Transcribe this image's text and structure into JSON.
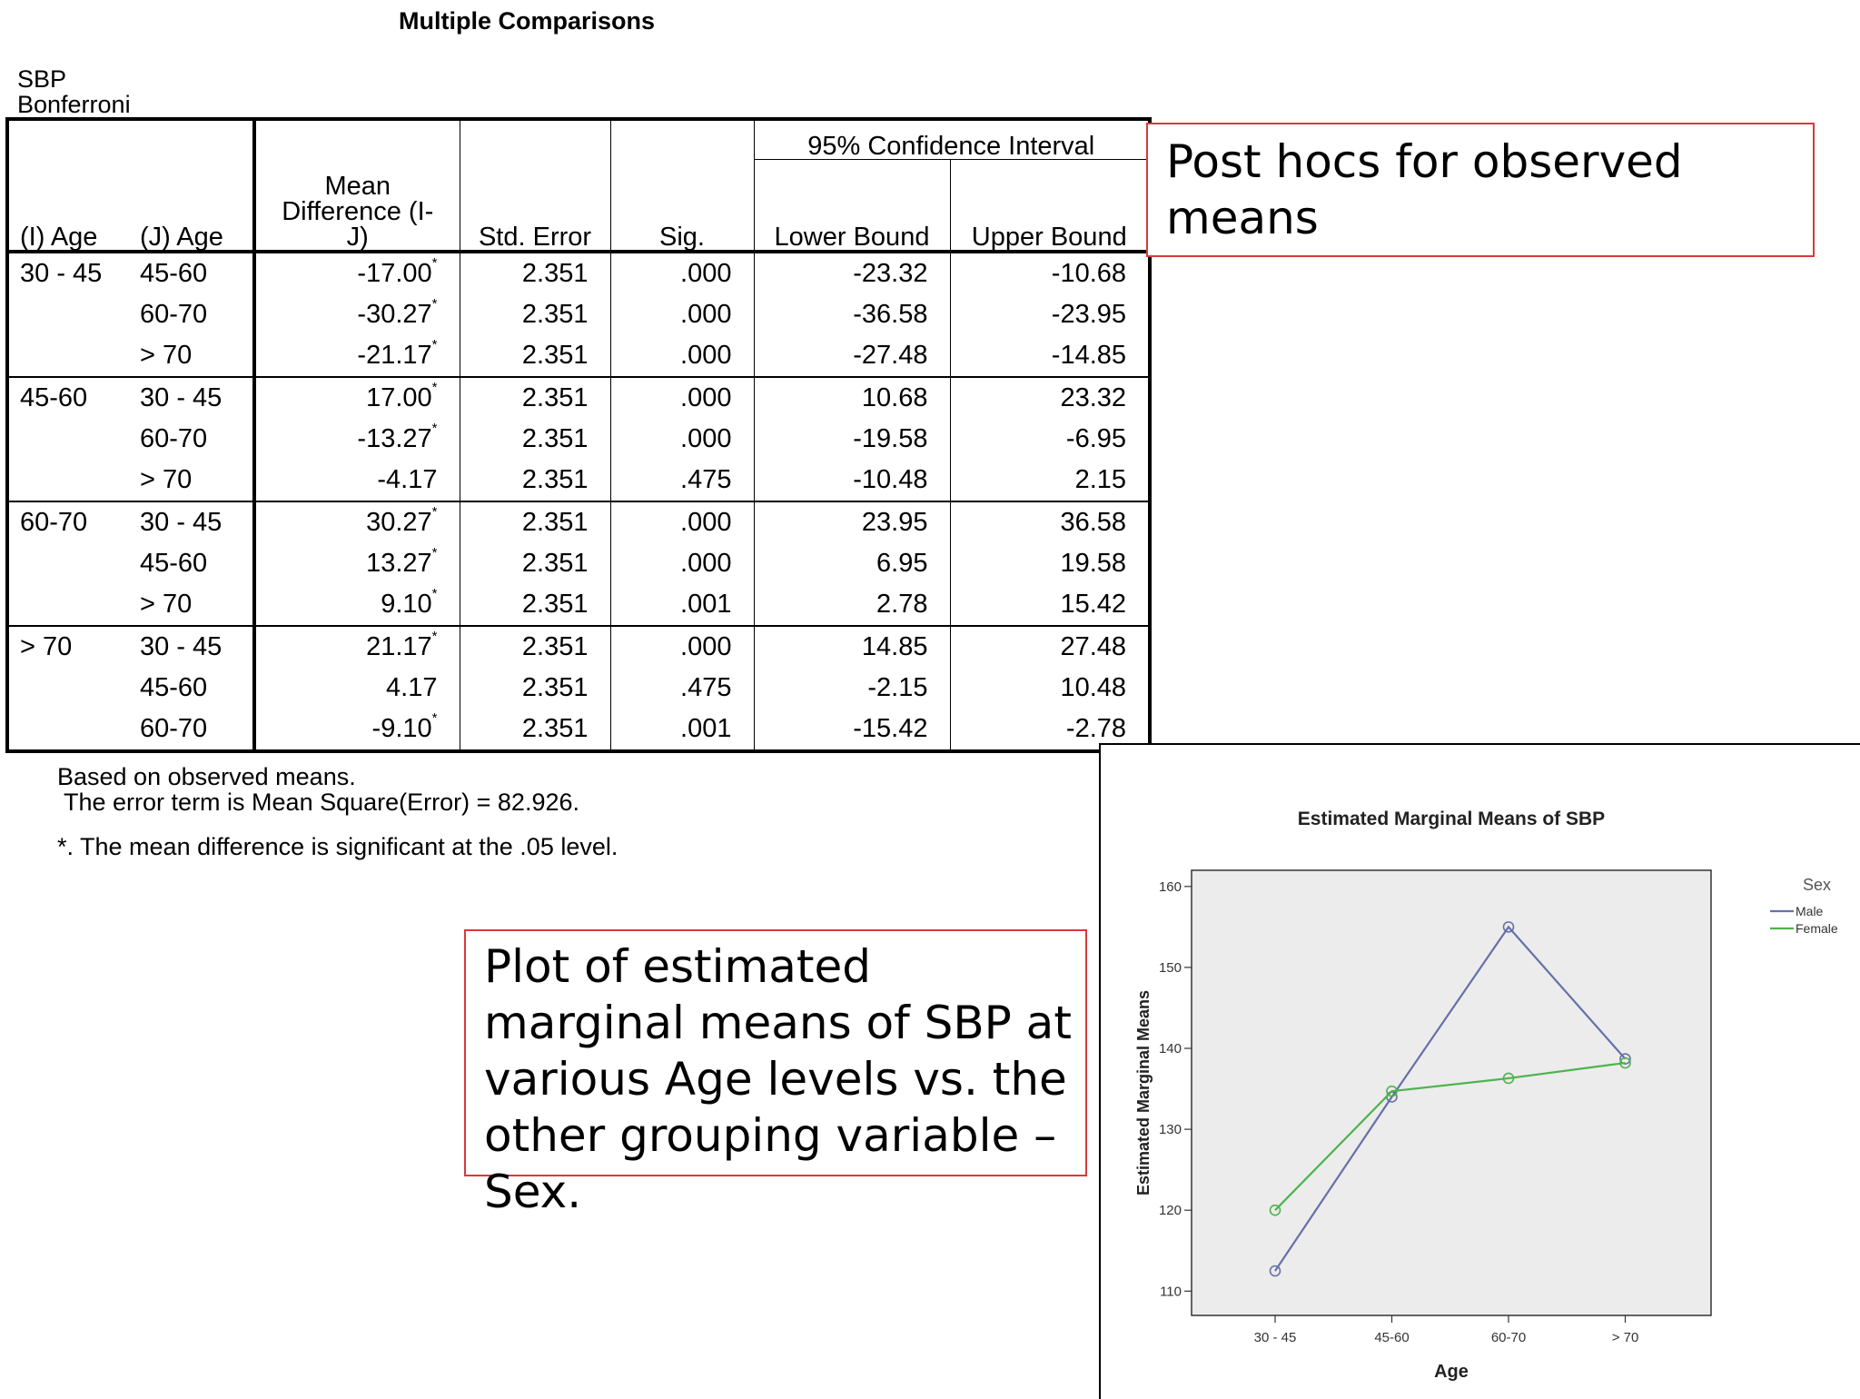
{
  "table": {
    "title": "Multiple Comparisons",
    "dependent": "SBP",
    "method": "Bonferroni",
    "headers": {
      "i_age": "(I) Age",
      "j_age": "(J) Age",
      "mean_diff": "Mean Difference (I-J)",
      "std_error": "Std. Error",
      "sig": "Sig.",
      "ci": "95% Confidence Interval",
      "lower": "Lower Bound",
      "upper": "Upper Bound"
    },
    "rows": [
      {
        "i": "30 - 45",
        "j": "45-60",
        "md": "-17.00",
        "star": "*",
        "se": "2.351",
        "sig": ".000",
        "lo": "-23.32",
        "hi": "-10.68"
      },
      {
        "i": "",
        "j": "60-70",
        "md": "-30.27",
        "star": "*",
        "se": "2.351",
        "sig": ".000",
        "lo": "-36.58",
        "hi": "-23.95"
      },
      {
        "i": "",
        "j": "> 70",
        "md": "-21.17",
        "star": "*",
        "se": "2.351",
        "sig": ".000",
        "lo": "-27.48",
        "hi": "-14.85"
      },
      {
        "i": "45-60",
        "j": "30 - 45",
        "md": "17.00",
        "star": "*",
        "se": "2.351",
        "sig": ".000",
        "lo": "10.68",
        "hi": "23.32"
      },
      {
        "i": "",
        "j": "60-70",
        "md": "-13.27",
        "star": "*",
        "se": "2.351",
        "sig": ".000",
        "lo": "-19.58",
        "hi": "-6.95"
      },
      {
        "i": "",
        "j": "> 70",
        "md": "-4.17",
        "star": "",
        "se": "2.351",
        "sig": ".475",
        "lo": "-10.48",
        "hi": "2.15"
      },
      {
        "i": "60-70",
        "j": "30 - 45",
        "md": "30.27",
        "star": "*",
        "se": "2.351",
        "sig": ".000",
        "lo": "23.95",
        "hi": "36.58"
      },
      {
        "i": "",
        "j": "45-60",
        "md": "13.27",
        "star": "*",
        "se": "2.351",
        "sig": ".000",
        "lo": "6.95",
        "hi": "19.58"
      },
      {
        "i": "",
        "j": "> 70",
        "md": "9.10",
        "star": "*",
        "se": "2.351",
        "sig": ".001",
        "lo": "2.78",
        "hi": "15.42"
      },
      {
        "i": "> 70",
        "j": "30 - 45",
        "md": "21.17",
        "star": "*",
        "se": "2.351",
        "sig": ".000",
        "lo": "14.85",
        "hi": "27.48"
      },
      {
        "i": "",
        "j": "45-60",
        "md": "4.17",
        "star": "",
        "se": "2.351",
        "sig": ".475",
        "lo": "-2.15",
        "hi": "10.48"
      },
      {
        "i": "",
        "j": "60-70",
        "md": "-9.10",
        "star": "*",
        "se": "2.351",
        "sig": ".001",
        "lo": "-15.42",
        "hi": "-2.78"
      }
    ]
  },
  "footnotes": {
    "line1": "Based on observed means.",
    "line2": " The error term is Mean Square(Error) = 82.926.",
    "line3": "*. The mean difference is significant at the .05 level."
  },
  "callouts": {
    "posthoc": "Post hocs for observed means",
    "plot": "Plot of estimated marginal means of SBP at various Age levels vs. the other grouping variable – Sex."
  },
  "chart_data": {
    "type": "line",
    "title": "Estimated Marginal Means of SBP",
    "xlabel": "Age",
    "ylabel": "Estimated Marginal Means",
    "categories": [
      "30 - 45",
      "45-60",
      "60-70",
      "> 70"
    ],
    "ylim": [
      107,
      162
    ],
    "yticks": [
      110,
      120,
      130,
      140,
      150,
      160
    ],
    "legend_title": "Sex",
    "legend_position": "top-right",
    "background": "#ececec",
    "series": [
      {
        "name": "Male",
        "color": "#6670a8",
        "values": [
          112.5,
          134,
          155,
          138.7
        ]
      },
      {
        "name": "Female",
        "color": "#4db34d",
        "values": [
          120,
          134.7,
          136.3,
          138.2
        ]
      }
    ]
  }
}
